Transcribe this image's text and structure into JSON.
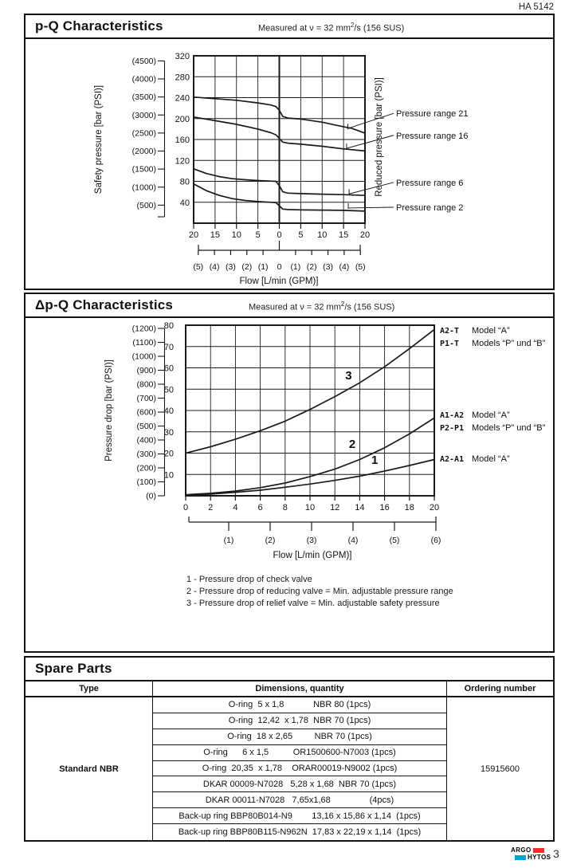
{
  "header": {
    "doc_number": "HA 5142"
  },
  "colors": {
    "accent_red": "#ee3124",
    "accent_blue": "#00a3d9",
    "ink": "#1a1a1a"
  },
  "chart_data": [
    {
      "type": "line",
      "section_title": "p-Q Characteristics",
      "measured_note": {
        "prefix": "Measured at  ν = 32 mm",
        "sup": "2",
        "suffix": "/s (156 SUS)"
      },
      "left_axis_label": "Safety pressure [bar (PSI)]",
      "right_axis_label": "Reduced pressure [bar (PSI)]",
      "x_axis_label": "Flow [L/min (GPM)]",
      "x_range_lmin": [
        -20,
        20
      ],
      "y_range_bar": [
        0,
        320
      ],
      "grid": true,
      "x_tick_values": [
        -20,
        -15,
        -10,
        -5,
        0,
        5,
        10,
        15,
        20
      ],
      "x_tick_labels": [
        "20",
        "15",
        "10",
        "5",
        "0",
        "5",
        "10",
        "15",
        "20"
      ],
      "y_tick_values": [
        40,
        80,
        120,
        160,
        200,
        240,
        280,
        320
      ],
      "psi_tick_labels": [
        "(4500)",
        "(4000)",
        "(3500)",
        "(3000)",
        "(2500)",
        "(2000)",
        "(1500)",
        "(1000)",
        "(500)"
      ],
      "gpm_tick_labels": [
        "(5)",
        "(4)",
        "(3)",
        "(2)",
        "(1)",
        "0",
        "(1)",
        "(2)",
        "(3)",
        "(4)",
        "(5)"
      ],
      "gpm_tick_values_lmin": [
        -18.93,
        -15.14,
        -11.36,
        -7.57,
        -3.79,
        0,
        3.79,
        7.57,
        11.36,
        15.14,
        18.93
      ],
      "series": [
        {
          "name": "Pressure range 21",
          "points": [
            [
              -20,
              241
            ],
            [
              -15,
              238
            ],
            [
              -10,
              235
            ],
            [
              -5,
              230
            ],
            [
              -2,
              226
            ],
            [
              -0.8,
              223
            ],
            [
              0,
              216
            ],
            [
              0.8,
              204
            ],
            [
              2,
              201
            ],
            [
              5,
              199
            ],
            [
              10,
              193
            ],
            [
              14,
              186
            ],
            [
              17,
              181
            ],
            [
              20,
              172
            ]
          ]
        },
        {
          "name": "Pressure range 16",
          "points": [
            [
              -20,
              203
            ],
            [
              -15,
              196
            ],
            [
              -10,
              189
            ],
            [
              -5,
              180
            ],
            [
              -2,
              173
            ],
            [
              -0.8,
              169
            ],
            [
              0,
              162
            ],
            [
              0.8,
              155
            ],
            [
              2,
              153
            ],
            [
              5,
              151
            ],
            [
              10,
              147
            ],
            [
              15,
              142
            ],
            [
              20,
              138
            ]
          ]
        },
        {
          "name": "Pressure range 6",
          "points": [
            [
              -20,
              104
            ],
            [
              -17,
              95
            ],
            [
              -14,
              89
            ],
            [
              -11,
              85
            ],
            [
              -8,
              83
            ],
            [
              -5,
              81.5
            ],
            [
              -2,
              80.5
            ],
            [
              -0.8,
              80
            ],
            [
              0,
              72
            ],
            [
              0.8,
              60
            ],
            [
              2,
              57.5
            ],
            [
              5,
              56.5
            ],
            [
              10,
              55.5
            ],
            [
              15,
              54.5
            ],
            [
              20,
              53
            ]
          ]
        },
        {
          "name": "Pressure range 2",
          "points": [
            [
              -20,
              75
            ],
            [
              -17,
              62
            ],
            [
              -14,
              53
            ],
            [
              -11,
              47
            ],
            [
              -8,
              43.5
            ],
            [
              -5,
              41.5
            ],
            [
              -2,
              40
            ],
            [
              -0.8,
              39.5
            ],
            [
              0,
              33
            ],
            [
              0.8,
              27
            ],
            [
              2,
              26
            ],
            [
              5,
              25.5
            ],
            [
              10,
              25
            ],
            [
              15,
              24.5
            ],
            [
              20,
              23
            ]
          ]
        }
      ],
      "annotations": [
        {
          "label": "Pressure range  21",
          "label_at_bar": 210,
          "attach": [
            16,
            178
          ]
        },
        {
          "label": "Pressure range 16",
          "label_at_bar": 168,
          "attach": [
            15.7,
            140
          ]
        },
        {
          "label": "Pressure range 6",
          "label_at_bar": 78,
          "attach": [
            16.3,
            53
          ]
        },
        {
          "label": "Pressure range 2",
          "label_at_bar": 30.5,
          "attach": [
            16.1,
            26
          ]
        }
      ]
    },
    {
      "type": "line",
      "section_title": "Δp-Q Characteristics",
      "measured_note": {
        "prefix": "Measured at  ν = 32 mm",
        "sup": "2",
        "suffix": "/s (156 SUS)"
      },
      "left_axis_label": "Pressure drop [bar (PSI)]",
      "x_axis_label": "Flow  [L/min (GPM)]",
      "x_range_lmin": [
        0,
        20
      ],
      "y_range_bar": [
        0,
        80
      ],
      "grid": true,
      "x_tick_values": [
        0,
        2,
        4,
        6,
        8,
        10,
        12,
        14,
        16,
        18,
        20
      ],
      "y_tick_values": [
        10,
        20,
        30,
        40,
        50,
        60,
        70,
        80
      ],
      "psi_tick_labels": [
        "(1200)",
        "(1100)",
        "(1000)",
        "(900)",
        "(800)",
        "(700)",
        "(600)",
        "(500)",
        "(400)",
        "(300)",
        "(200)",
        "(100)",
        "(0)"
      ],
      "gpm_tick_labels": [
        "(1)",
        "(2)",
        "(3)",
        "(4)",
        "(5)",
        "(6)"
      ],
      "series": [
        {
          "name": "3",
          "points": [
            [
              0,
              20
            ],
            [
              2,
              23
            ],
            [
              4,
              26.5
            ],
            [
              6,
              30.5
            ],
            [
              8,
              35
            ],
            [
              10,
              40.5
            ],
            [
              12,
              46.5
            ],
            [
              14,
              53
            ],
            [
              16,
              60.5
            ],
            [
              18,
              69
            ],
            [
              20,
              78
            ]
          ]
        },
        {
          "name": "2",
          "points": [
            [
              0,
              0.5
            ],
            [
              2,
              1.2
            ],
            [
              4,
              2.2
            ],
            [
              6,
              3.8
            ],
            [
              8,
              6
            ],
            [
              10,
              9
            ],
            [
              12,
              12.5
            ],
            [
              14,
              17
            ],
            [
              16,
              22.5
            ],
            [
              18,
              29
            ],
            [
              20,
              36.5
            ]
          ]
        },
        {
          "name": "1",
          "points": [
            [
              0,
              0.2
            ],
            [
              2,
              0.8
            ],
            [
              4,
              1.6
            ],
            [
              6,
              2.6
            ],
            [
              8,
              4
            ],
            [
              10,
              5.5
            ],
            [
              12,
              7.2
            ],
            [
              14,
              9.2
            ],
            [
              16,
              11.6
            ],
            [
              18,
              14.2
            ],
            [
              20,
              17
            ]
          ]
        }
      ],
      "curve_labels": [
        {
          "text": "3",
          "x": 13.1,
          "y": 54.5
        },
        {
          "text": "2",
          "x": 13.4,
          "y": 22.5
        },
        {
          "text": "1",
          "x": 15.2,
          "y": 15
        }
      ],
      "right_labels": [
        {
          "code": "A2-T",
          "text": "Model “A”",
          "at_bar": 77.4
        },
        {
          "code": "P1-T",
          "text": "Models “P” und “B”",
          "at_bar": 71.4
        },
        {
          "code": "A1-A2",
          "text": "Model “A”",
          "at_bar": 37.8
        },
        {
          "code": "P2-P1",
          "text": "Models “P” und “B”",
          "at_bar": 31.8
        },
        {
          "code": "A2-A1",
          "text": "Model “A”",
          "at_bar": 17.2
        }
      ],
      "notes": [
        "1 - Pressure drop of check valve",
        "2 - Pressure drop of reducing valve = Min. adjustable pressure range",
        "3 - Pressure drop of relief valve = Min. adjustable safety pressure"
      ]
    }
  ],
  "spare_parts": {
    "title": "Spare Parts",
    "columns": [
      "Type",
      "Dimensions, quantity",
      "Ordering number"
    ],
    "type_value": "Standard NBR",
    "ordering_value": "15915600",
    "rows": [
      "O-ring  5 x 1,8            NBR 80 (1pcs)",
      "O-ring  12,42  x 1,78  NBR 70 (1pcs)",
      "O-ring  18 x 2,65         NBR 70 (1pcs)",
      "O-ring      6 x 1,5          OR1500600-N7003 (1pcs)",
      "O-ring  20,35  x 1,78    ORAR00019-N9002 (1pcs)",
      "DKAR 00009-N7028   5,28 x 1,68  NBR 70 (1pcs)",
      "DKAR 00011-N7028   7,65x1,68                (4pcs)",
      "Back-up ring BBP80B014-N9        13,16 x 15,86 x 1,14  (1pcs)",
      "Back-up ring BBP80B115-N962N  17,83 x 22,19 x 1,14  (1pcs)"
    ]
  },
  "footer": {
    "page_number": "3",
    "logo": {
      "line1": "ARGO",
      "line2": "HYTOS"
    }
  }
}
